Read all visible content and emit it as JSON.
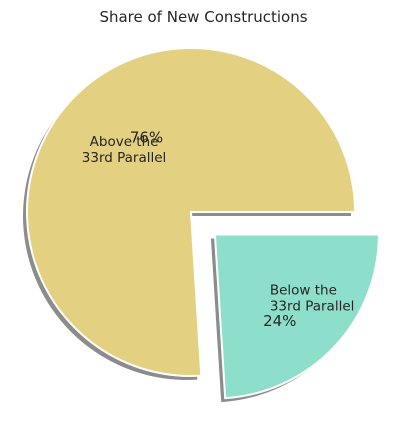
{
  "chart_data": {
    "type": "pie",
    "title": "Share of New Constructions",
    "slices": [
      {
        "label_lines": [
          "Above the",
          "33rd Parallel"
        ],
        "value": 76,
        "pct_label": "76%",
        "color": "#e3d081",
        "explode": 0
      },
      {
        "label_lines": [
          "Below the",
          "33rd Parallel"
        ],
        "value": 24,
        "pct_label": "24%",
        "color": "#8ddfcb",
        "explode": 0.2
      }
    ],
    "start_angle": 0,
    "counterclock": true,
    "shadow": true,
    "edge_color": "#ffffff"
  }
}
